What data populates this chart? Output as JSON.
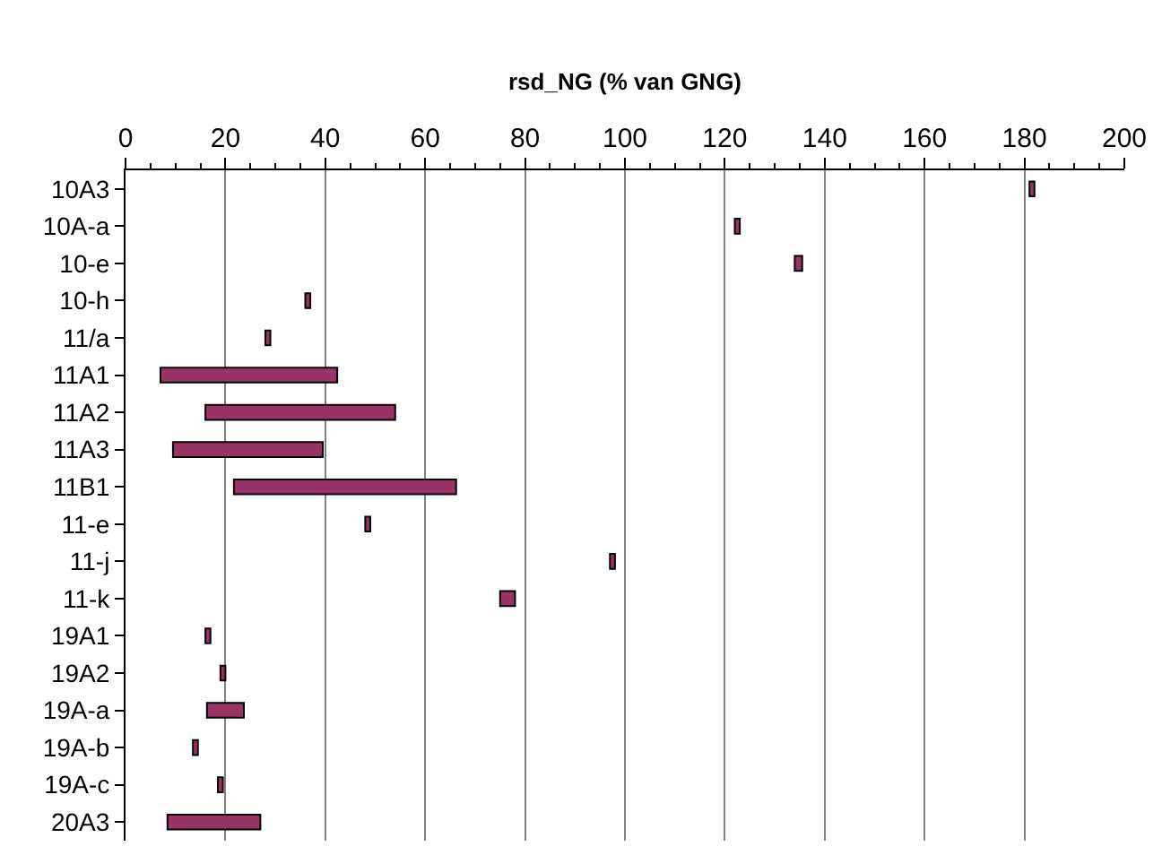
{
  "chart_data": {
    "type": "bar",
    "orientation": "horizontal",
    "xlabel": "rsd_NG (% van GNG)",
    "categories": [
      "10A3",
      "10A-a",
      "10-e",
      "10-h",
      "11/a",
      "11A1",
      "11A2",
      "11A3",
      "11B1",
      "11-e",
      "11-j",
      "11-k",
      "19A1",
      "19A2",
      "19A-a",
      "19A-b",
      "19A-c",
      "20A3"
    ],
    "base": [
      181,
      122,
      134,
      36,
      28,
      7,
      16,
      9.5,
      21.7,
      48,
      97,
      75,
      16,
      19,
      16.3,
      13.5,
      18.5,
      8.4
    ],
    "values": [
      1,
      1,
      1.5,
      1,
      1,
      35.4,
      38,
      30,
      44.5,
      1,
      1,
      3,
      1,
      1,
      7.4,
      1,
      1,
      18.6
    ],
    "color": "#993366",
    "xlim": [
      0,
      200
    ],
    "xticks": [
      0,
      20,
      40,
      60,
      80,
      100,
      120,
      140,
      160,
      180,
      200
    ],
    "grid": "x",
    "legend": false
  }
}
